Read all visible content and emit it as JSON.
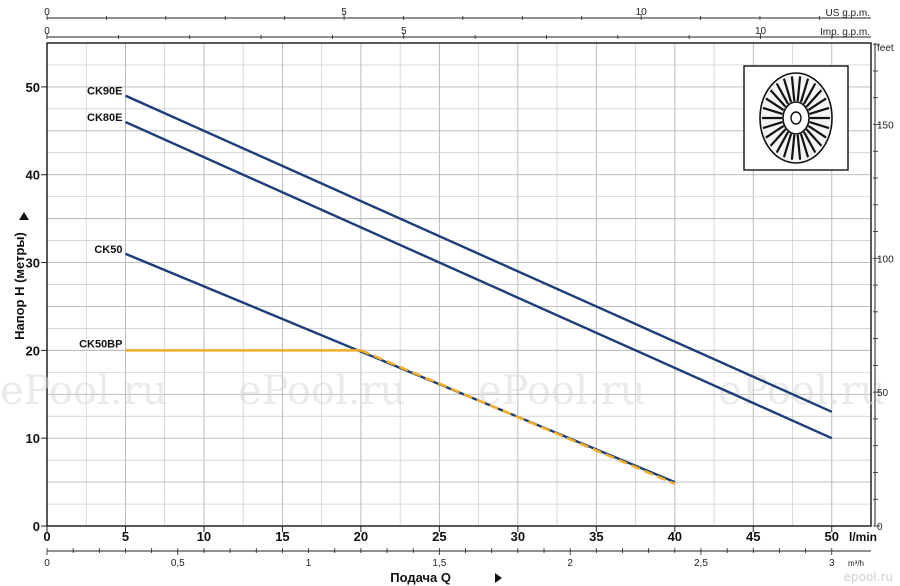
{
  "chart_data": {
    "type": "line",
    "xlabel": "Подача Q",
    "ylabel": "Напор H (метры)",
    "x_unit": "l/min",
    "x_secondary_unit": "m³/h",
    "x_top_us_unit": "US g.p.m.",
    "x_top_imp_unit": "Imp. g.p.m.",
    "y_right_unit": "feet",
    "xlim": [
      0,
      52.5
    ],
    "ylim": [
      0,
      55
    ],
    "grid": true,
    "x_ticks": [
      "0",
      "5",
      "10",
      "15",
      "20",
      "25",
      "30",
      "35",
      "40",
      "45",
      "50"
    ],
    "y_ticks": [
      "0",
      "10",
      "20",
      "30",
      "40",
      "50"
    ],
    "x_bottom_m3h_ticks": [
      "0",
      "0,5",
      "1",
      "1,5",
      "2",
      "2,5",
      "3"
    ],
    "x_top_us_ticks": [
      "0",
      "5",
      "10"
    ],
    "x_top_imp_ticks": [
      "0",
      "5",
      "10"
    ],
    "y_right_feet_ticks": [
      "0",
      "50",
      "100",
      "150"
    ],
    "series": [
      {
        "name": "CK90E",
        "color": "#1c3e78",
        "dashed": false,
        "x": [
          5,
          50
        ],
        "y": [
          49,
          13
        ]
      },
      {
        "name": "CK80E",
        "color": "#1c3e78",
        "dashed": false,
        "x": [
          5,
          50
        ],
        "y": [
          46,
          10
        ]
      },
      {
        "name": "CK50",
        "color": "#1c3e78",
        "dashed": false,
        "x": [
          5,
          40
        ],
        "y": [
          31,
          5
        ]
      },
      {
        "name": "CK50BP",
        "color": "#f0ae2a",
        "dashed": true,
        "x": [
          5,
          20,
          40
        ],
        "y": [
          20,
          20,
          4.8
        ]
      }
    ],
    "watermarks": [
      "ePool.ru",
      "ePool.ru",
      "ePool.ru",
      "ePool.ru"
    ],
    "brand_mark": "epool.ru",
    "inset_image": "impeller-drawing"
  }
}
